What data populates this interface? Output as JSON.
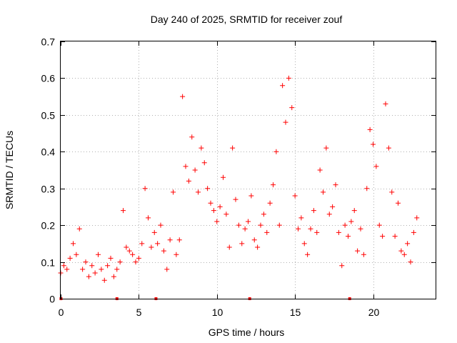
{
  "chart_data": {
    "type": "scatter",
    "title": "Day 240 of 2025, SRMTID for receiver zouf",
    "xlabel": "GPS time / hours",
    "ylabel": "SRMTID / TECUs",
    "xlim": [
      0,
      24
    ],
    "ylim": [
      0,
      0.7
    ],
    "xticks": [
      0,
      5,
      10,
      15,
      20
    ],
    "yticks": [
      0,
      0.1,
      0.2,
      0.3,
      0.4,
      0.5,
      0.6,
      0.7
    ],
    "grid": true,
    "marker": "plus",
    "colors": {
      "series": "#ff0000",
      "axis": "#000000",
      "grid": "#b0b0b0"
    },
    "series": [
      {
        "name": "SRMTID",
        "x": [
          0.0,
          0.2,
          0.4,
          0.6,
          0.8,
          1.0,
          1.2,
          1.4,
          1.6,
          1.8,
          2.0,
          2.2,
          2.4,
          2.6,
          2.8,
          3.0,
          3.2,
          3.4,
          3.6,
          3.8,
          4.0,
          4.2,
          4.4,
          4.6,
          4.8,
          5.0,
          5.2,
          5.4,
          5.6,
          5.8,
          6.0,
          6.2,
          6.4,
          6.6,
          6.8,
          7.0,
          7.2,
          7.4,
          7.6,
          7.8,
          8.0,
          8.2,
          8.4,
          8.6,
          8.8,
          9.0,
          9.2,
          9.4,
          9.6,
          9.8,
          10.0,
          10.2,
          10.4,
          10.6,
          10.8,
          11.0,
          11.2,
          11.4,
          11.6,
          11.8,
          12.0,
          12.2,
          12.4,
          12.6,
          12.8,
          13.0,
          13.2,
          13.4,
          13.6,
          13.8,
          14.0,
          14.2,
          14.4,
          14.6,
          14.8,
          15.0,
          15.2,
          15.4,
          15.6,
          15.8,
          16.0,
          16.2,
          16.4,
          16.6,
          16.8,
          17.0,
          17.2,
          17.4,
          17.6,
          17.8,
          18.0,
          18.2,
          18.4,
          18.6,
          18.8,
          19.0,
          19.2,
          19.4,
          19.6,
          19.8,
          20.0,
          20.2,
          20.4,
          20.6,
          20.8,
          21.0,
          21.2,
          21.4,
          21.6,
          21.8,
          22.0,
          22.2,
          22.4,
          22.6,
          22.8
        ],
        "y": [
          0.07,
          0.09,
          0.08,
          0.11,
          0.15,
          0.12,
          0.19,
          0.08,
          0.1,
          0.06,
          0.09,
          0.07,
          0.12,
          0.08,
          0.05,
          0.09,
          0.11,
          0.06,
          0.08,
          0.1,
          0.24,
          0.14,
          0.13,
          0.12,
          0.1,
          0.11,
          0.15,
          0.3,
          0.22,
          0.14,
          0.18,
          0.15,
          0.2,
          0.13,
          0.08,
          0.16,
          0.29,
          0.12,
          0.16,
          0.55,
          0.36,
          0.32,
          0.44,
          0.35,
          0.29,
          0.41,
          0.37,
          0.3,
          0.26,
          0.24,
          0.21,
          0.25,
          0.33,
          0.23,
          0.14,
          0.41,
          0.27,
          0.2,
          0.15,
          0.19,
          0.21,
          0.28,
          0.16,
          0.14,
          0.2,
          0.23,
          0.18,
          0.26,
          0.31,
          0.4,
          0.2,
          0.58,
          0.48,
          0.6,
          0.52,
          0.28,
          0.19,
          0.22,
          0.15,
          0.12,
          0.19,
          0.24,
          0.18,
          0.35,
          0.29,
          0.41,
          0.23,
          0.25,
          0.31,
          0.18,
          0.09,
          0.2,
          0.17,
          0.21,
          0.24,
          0.13,
          0.19,
          0.12,
          0.3,
          0.46,
          0.42,
          0.36,
          0.2,
          0.17,
          0.53,
          0.41,
          0.29,
          0.17,
          0.26,
          0.13,
          0.12,
          0.15,
          0.1,
          0.18,
          0.22
        ],
        "annotation": "dense scatter of + markers; representative points read off the plot"
      }
    ],
    "gap_markers_x": [
      0.02,
      3.6,
      6.1,
      12.1,
      18.5
    ]
  }
}
